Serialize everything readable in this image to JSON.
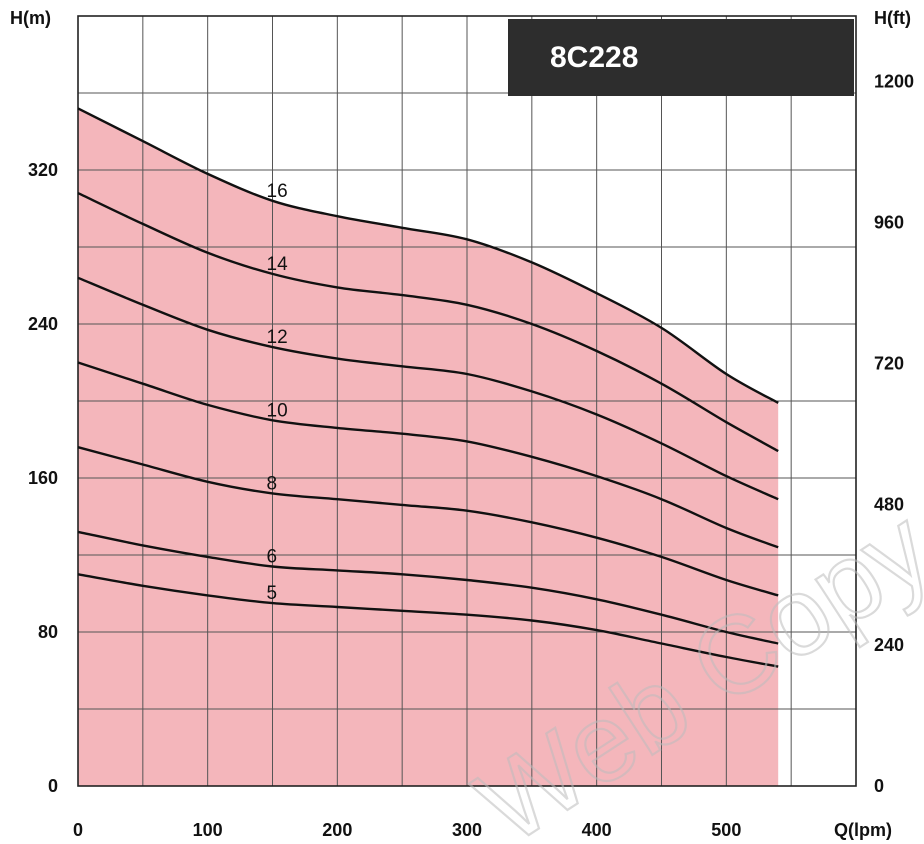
{
  "chart_data": {
    "type": "line",
    "title": "8C228",
    "xlabel": "Q(lpm)",
    "ylabel": "H(m)",
    "y2label": "H(ft)",
    "xlim": [
      0,
      600
    ],
    "ylim": [
      0,
      400
    ],
    "y2lim": [
      0,
      1312
    ],
    "x_ticks": [
      "0",
      "100",
      "200",
      "300",
      "400",
      "500"
    ],
    "y_ticks": [
      "0",
      "80",
      "160",
      "240",
      "320"
    ],
    "y2_ticks": [
      "0",
      "240",
      "480",
      "720",
      "960",
      "1200"
    ],
    "grid": true,
    "fill_color": "#f4b6bb",
    "line_color": "#111111",
    "badge_color": "#2d2d2d",
    "watermark": "Web Copy Reference Only",
    "series": [
      {
        "name": "16",
        "x": [
          0,
          50,
          100,
          150,
          200,
          250,
          300,
          350,
          400,
          450,
          500,
          540
        ],
        "y": [
          352,
          335,
          318,
          304,
          296,
          290,
          284,
          272,
          256,
          238,
          214,
          199
        ]
      },
      {
        "name": "14",
        "x": [
          0,
          50,
          100,
          150,
          200,
          250,
          300,
          350,
          400,
          450,
          500,
          540
        ],
        "y": [
          308,
          292,
          277,
          266,
          259,
          255,
          250,
          240,
          226,
          209,
          189,
          174
        ]
      },
      {
        "name": "12",
        "x": [
          0,
          50,
          100,
          150,
          200,
          250,
          300,
          350,
          400,
          450,
          500,
          540
        ],
        "y": [
          264,
          250,
          237,
          228,
          222,
          218,
          214,
          205,
          193,
          178,
          161,
          149
        ]
      },
      {
        "name": "10",
        "x": [
          0,
          50,
          100,
          150,
          200,
          250,
          300,
          350,
          400,
          450,
          500,
          540
        ],
        "y": [
          220,
          209,
          198,
          190,
          186,
          183,
          179,
          171,
          161,
          149,
          134,
          124
        ]
      },
      {
        "name": "8",
        "x": [
          0,
          50,
          100,
          150,
          200,
          250,
          300,
          350,
          400,
          450,
          500,
          540
        ],
        "y": [
          176,
          167,
          158,
          152,
          149,
          146,
          143,
          137,
          129,
          119,
          107,
          99
        ]
      },
      {
        "name": "6",
        "x": [
          0,
          50,
          100,
          150,
          200,
          250,
          300,
          350,
          400,
          450,
          500,
          540
        ],
        "y": [
          132,
          125,
          119,
          114,
          112,
          110,
          107,
          103,
          97,
          89,
          80,
          74
        ]
      },
      {
        "name": "5",
        "x": [
          0,
          50,
          100,
          150,
          200,
          250,
          300,
          350,
          400,
          450,
          500,
          540
        ],
        "y": [
          110,
          104,
          99,
          95,
          93,
          91,
          89,
          86,
          81,
          74,
          67,
          62
        ]
      }
    ]
  }
}
